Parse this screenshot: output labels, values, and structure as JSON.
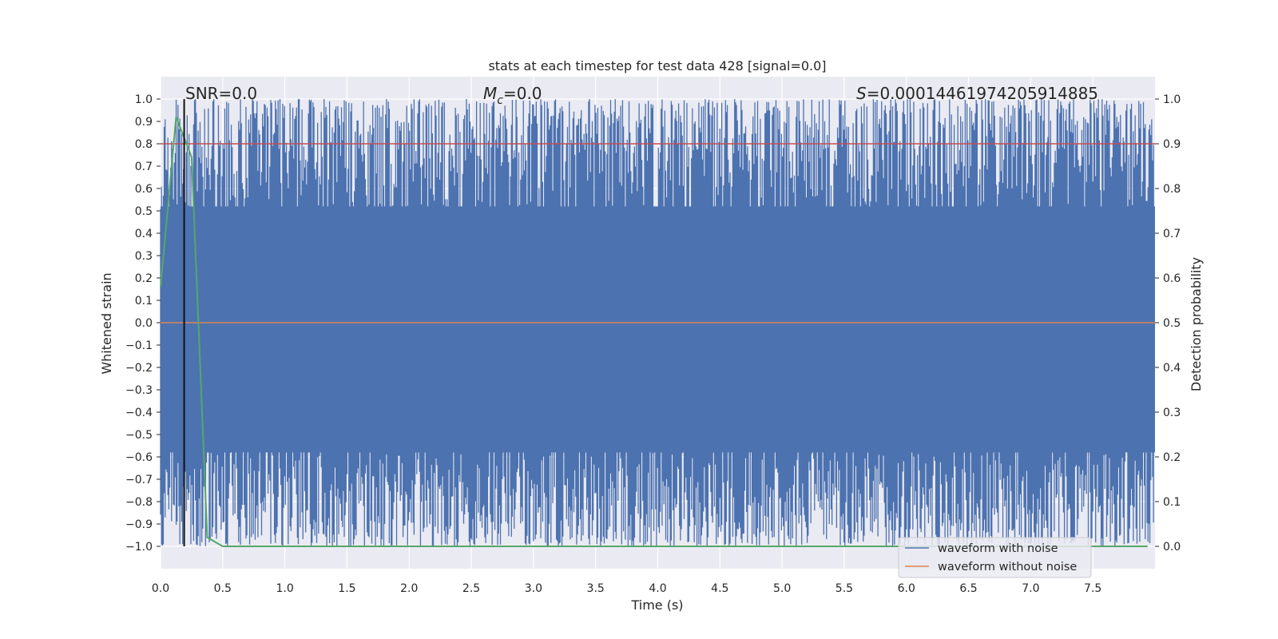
{
  "chart_data": {
    "type": "line",
    "title": "stats at each timestep for test data 428 [signal=0.0]",
    "xlabel": "Time (s)",
    "ylabel": "Whitened strain",
    "y2label": "Detection probability",
    "xlim": [
      0.0,
      8.0
    ],
    "ylim": [
      -1.1,
      1.1
    ],
    "y2lim": [
      -0.05,
      1.05
    ],
    "xticks": [
      "0.0",
      "0.5",
      "1.0",
      "1.5",
      "2.0",
      "2.5",
      "3.0",
      "3.5",
      "4.0",
      "4.5",
      "5.0",
      "5.5",
      "6.0",
      "6.5",
      "7.0",
      "7.5"
    ],
    "yticks": [
      "1.0",
      "0.9",
      "0.8",
      "0.7",
      "0.6",
      "0.5",
      "0.4",
      "0.3",
      "0.2",
      "0.1",
      "0.0",
      "−0.1",
      "−0.2",
      "−0.3",
      "−0.4",
      "−0.5",
      "−0.6",
      "−0.7",
      "−0.8",
      "−0.9",
      "−1.0"
    ],
    "y2ticks": [
      "1.0",
      "0.9",
      "0.8",
      "0.7",
      "0.6",
      "0.5",
      "0.4",
      "0.3",
      "0.2",
      "0.1",
      "0.0"
    ],
    "annotations": {
      "snr": "SNR=0.0",
      "mc_symbol": "M",
      "mc_sub": "c",
      "mc_value": "=0.0",
      "s_symbol": "S",
      "s_value": "=0.00014461974205914885"
    },
    "legend_placement": "bottom-right",
    "grid": true,
    "series": [
      {
        "name": "waveform with noise",
        "color": "#4c72b0",
        "description_range": [
          -1.0,
          1.0
        ]
      },
      {
        "name": "waveform without noise",
        "color": "#dd8452",
        "values_constant": 0.0
      },
      {
        "color": "#55a868",
        "axis": "right",
        "x": [
          0.0,
          0.125,
          0.25,
          0.375,
          0.5,
          7.94
        ],
        "y": [
          0.58,
          0.96,
          0.87,
          0.02,
          0.0,
          0.0
        ]
      },
      {
        "color": "#c44e52",
        "axis": "right",
        "constant": 0.9
      },
      {
        "color": "#111111",
        "axis": "left",
        "vertical_at": 0.19
      }
    ]
  }
}
